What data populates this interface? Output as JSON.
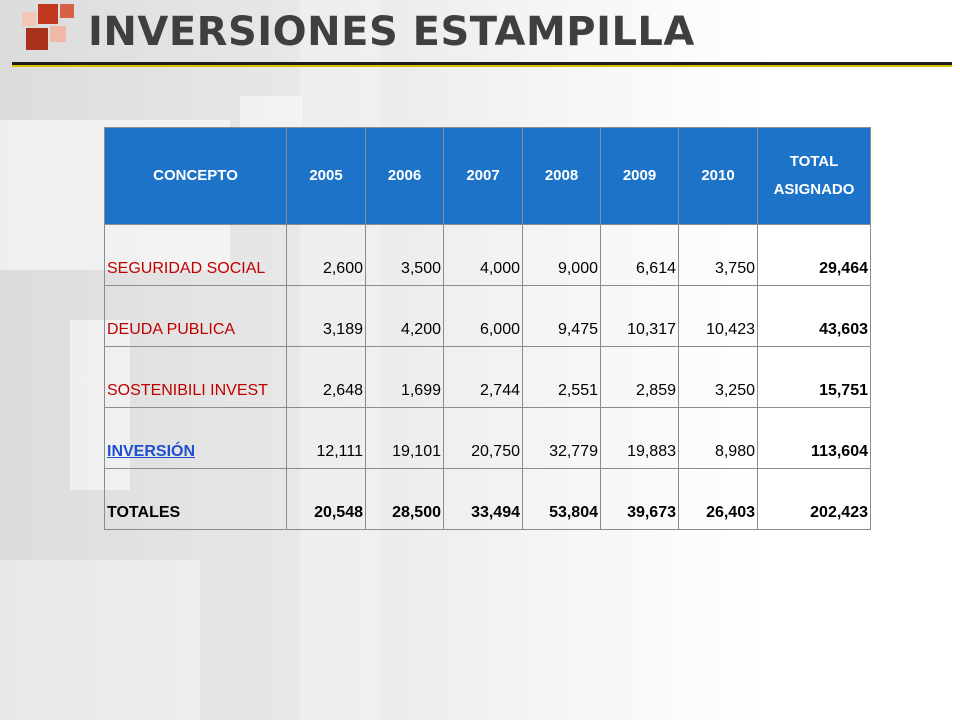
{
  "title": "INVERSIONES ESTAMPILLA",
  "colors": {
    "header_fill": "#1d73c7",
    "concept_text": "#c00000",
    "link_text": "#1f4fd1",
    "title_text": "#3f3f3f",
    "accent_rule": "#d8c200"
  },
  "table": {
    "headers": [
      "CONCEPTO",
      "2005",
      "2006",
      "2007",
      "2008",
      "2009",
      "2010",
      "TOTAL ASIGNADO"
    ],
    "rows": [
      {
        "concepto": "SEGURIDAD SOCIAL",
        "values": [
          "2,600",
          "3,500",
          "4,000",
          "9,000",
          "6,614",
          "3,750"
        ],
        "total": "29,464"
      },
      {
        "concepto": "DEUDA PUBLICA",
        "values": [
          "3,189",
          "4,200",
          "6,000",
          "9,475",
          "10,317",
          "10,423"
        ],
        "total": "43,603"
      },
      {
        "concepto": "SOSTENIBILI INVEST",
        "values": [
          "2,648",
          "1,699",
          "2,744",
          "2,551",
          "2,859",
          "3,250"
        ],
        "total": "15,751"
      },
      {
        "concepto": "INVERSIÓN",
        "values": [
          "12,111",
          "19,101",
          "20,750",
          "32,779",
          "19,883",
          "8,980"
        ],
        "total": "113,604"
      },
      {
        "concepto": "TOTALES",
        "values": [
          "20,548",
          "28,500",
          "33,494",
          "53,804",
          "39,673",
          "26,403"
        ],
        "total": "202,423"
      }
    ]
  }
}
